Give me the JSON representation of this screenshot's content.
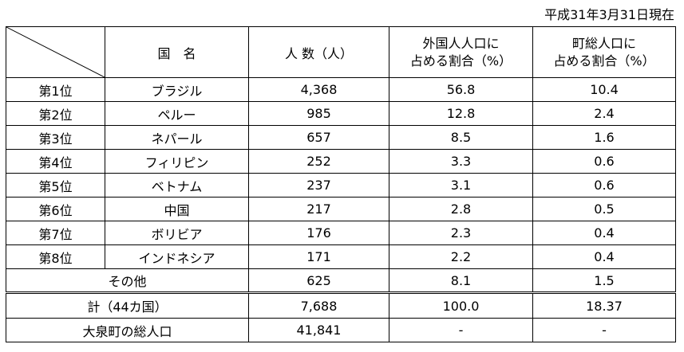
{
  "date_note": "平成31年3月31日現在",
  "header": {
    "country": "国　名",
    "population": "人 数（人）",
    "foreign_share_line1": "外国人人口に",
    "foreign_share_line2": "占める割合（%）",
    "town_share_line1": "町総人口に",
    "town_share_line2": "占める割合（%）"
  },
  "rows": [
    {
      "rank": "第1位",
      "country": "ブラジル",
      "population": "4,368",
      "foreign_share": "56.8",
      "town_share": "10.4"
    },
    {
      "rank": "第2位",
      "country": "ペルー",
      "population": "985",
      "foreign_share": "12.8",
      "town_share": "2.4"
    },
    {
      "rank": "第3位",
      "country": "ネパール",
      "population": "657",
      "foreign_share": "8.5",
      "town_share": "1.6"
    },
    {
      "rank": "第4位",
      "country": "フィリピン",
      "population": "252",
      "foreign_share": "3.3",
      "town_share": "0.6"
    },
    {
      "rank": "第5位",
      "country": "ベトナム",
      "population": "237",
      "foreign_share": "3.1",
      "town_share": "0.6"
    },
    {
      "rank": "第6位",
      "country": "中国",
      "population": "217",
      "foreign_share": "2.8",
      "town_share": "0.5"
    },
    {
      "rank": "第7位",
      "country": "ボリビア",
      "population": "176",
      "foreign_share": "2.3",
      "town_share": "0.4"
    },
    {
      "rank": "第8位",
      "country": "インドネシア",
      "population": "171",
      "foreign_share": "2.2",
      "town_share": "0.4"
    }
  ],
  "other": {
    "label": "その他",
    "population": "625",
    "foreign_share": "8.1",
    "town_share": "1.5"
  },
  "total": {
    "label": "計（44カ国）",
    "population": "7,688",
    "foreign_share": "100.0",
    "town_share": "18.37"
  },
  "town_population": {
    "label": "大泉町の総人口",
    "population": "41,841",
    "foreign_share": "-",
    "town_share": "-"
  }
}
